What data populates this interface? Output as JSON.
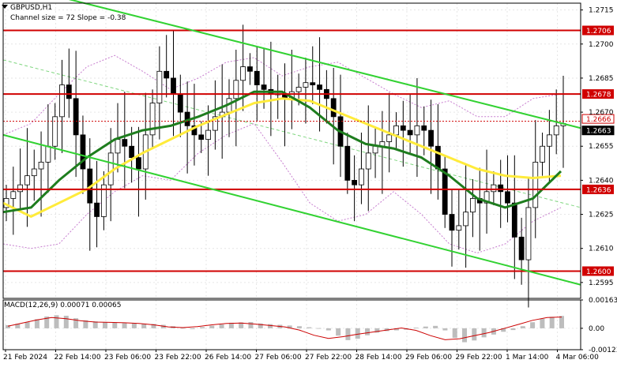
{
  "chart_data": [
    {
      "type": "line",
      "title": "GBPUSD,H1",
      "subtitle": "Channel size = 72 Slope = -0.38",
      "ylim": [
        1.2588,
        1.2718
      ],
      "grid": true,
      "y_ticks": [
        1.2595,
        1.261,
        1.2625,
        1.264,
        1.2655,
        1.267,
        1.2685,
        1.27,
        1.2715
      ],
      "x_ticks": [
        "21 Feb 2024",
        "22 Feb 14:00",
        "23 Feb 06:00",
        "23 Feb 22:00",
        "26 Feb 14:00",
        "27 Feb 06:00",
        "27 Feb 22:00",
        "28 Feb 14:00",
        "29 Feb 06:00",
        "29 Feb 22:00",
        "1 Mar 14:00",
        "4 Mar 06:00"
      ],
      "horizontal_levels": [
        {
          "label": "1.2706",
          "value": 1.2706
        },
        {
          "label": "1.2678",
          "value": 1.2678
        },
        {
          "label": "1.2636",
          "value": 1.2636
        },
        {
          "label": "1.2600",
          "value": 1.26
        }
      ],
      "price_tags": [
        {
          "label": "1.2666",
          "value": 1.2666,
          "color": "#cc0000"
        },
        {
          "label": "1.2663",
          "value": 1.2663,
          "color": "#000000"
        }
      ],
      "series": [
        {
          "role": "close",
          "values": [
            1.2632,
            1.2635,
            1.2638,
            1.2642,
            1.2645,
            1.2648,
            1.2655,
            1.2668,
            1.2682,
            1.2676,
            1.266,
            1.2645,
            1.263,
            1.2624,
            1.2638,
            1.2652,
            1.2658,
            1.2655,
            1.265,
            1.2645,
            1.266,
            1.2674,
            1.2688,
            1.2685,
            1.2678,
            1.267,
            1.2664,
            1.266,
            1.2658,
            1.2662,
            1.2668,
            1.267,
            1.2676,
            1.2684,
            1.269,
            1.2688,
            1.2682,
            1.268,
            1.2678,
            1.2678,
            1.2676,
            1.2679,
            1.2681,
            1.2683,
            1.2682,
            1.268,
            1.2676,
            1.2668,
            1.2655,
            1.264,
            1.2638,
            1.2645,
            1.2652,
            1.2655,
            1.2657,
            1.266,
            1.2664,
            1.2662,
            1.266,
            1.2664,
            1.2662,
            1.2655,
            1.2645,
            1.2625,
            1.2618,
            1.262,
            1.2626,
            1.2632,
            1.263,
            1.2635,
            1.2638,
            1.2635,
            1.263,
            1.2615,
            1.2605,
            1.2628,
            1.2648,
            1.2655,
            1.266,
            1.2664,
            1.2665
          ]
        },
        {
          "role": "channel-upper",
          "x0_value": 1.2727,
          "x1_value": 1.2663
        },
        {
          "role": "channel-lower",
          "x0_value": 1.266,
          "x1_value": 1.2594
        },
        {
          "role": "channel-mid",
          "x0_value": 1.2693,
          "x1_value": 1.2628
        },
        {
          "role": "bollinger-upper",
          "values": [
            1.266,
            1.2665,
            1.2678,
            1.269,
            1.2695,
            1.2688,
            1.268,
            1.2685,
            1.2692,
            1.2694,
            1.2686,
            1.269,
            1.2692,
            1.2685,
            1.2678,
            1.2672,
            1.2675,
            1.2668,
            1.2668,
            1.2676,
            1.2678
          ]
        },
        {
          "role": "bollinger-lower",
          "values": [
            1.2612,
            1.261,
            1.2612,
            1.2625,
            1.2635,
            1.2642,
            1.264,
            1.2652,
            1.266,
            1.2665,
            1.2648,
            1.263,
            1.2622,
            1.2625,
            1.2635,
            1.2625,
            1.2612,
            1.2608,
            1.2612,
            1.2622,
            1.2628
          ]
        },
        {
          "role": "ma-slow",
          "color": "#ffeb3b",
          "values": [
            1.263,
            1.2624,
            1.263,
            1.2636,
            1.2645,
            1.2652,
            1.2658,
            1.2664,
            1.2669,
            1.2674,
            1.2676,
            1.2675,
            1.267,
            1.2665,
            1.266,
            1.2655,
            1.265,
            1.2645,
            1.2642,
            1.2641,
            1.2642
          ]
        },
        {
          "role": "ma-fast",
          "color": "#1e7d1e",
          "values": [
            1.2626,
            1.2628,
            1.264,
            1.265,
            1.2658,
            1.2662,
            1.2664,
            1.2668,
            1.2673,
            1.2679,
            1.2679,
            1.2672,
            1.2662,
            1.2656,
            1.2654,
            1.265,
            1.2642,
            1.2632,
            1.2628,
            1.2632,
            1.2644
          ]
        }
      ]
    },
    {
      "type": "bar",
      "title": "MACD(12,26,9) 0.00071 0.00065",
      "ylim": [
        -0.00123,
        0.00163
      ],
      "y_ticks": [
        {
          "label": "0.00163",
          "value": 0.00163
        },
        {
          "label": "0.00",
          "value": 0.0
        },
        {
          "label": "-0.00123",
          "value": -0.00123
        }
      ],
      "series": [
        {
          "name": "histogram",
          "color": "#bdbdbd",
          "values": [
            0.00018,
            0.00026,
            0.00035,
            0.00052,
            0.00068,
            0.00075,
            0.00072,
            0.00058,
            0.00046,
            0.0004,
            0.00036,
            0.00032,
            0.0003,
            0.00029,
            0.00027,
            0.00025,
            0.0002,
            0.00012,
            2e-05,
            -5e-05,
            7e-05,
            0.00015,
            0.00022,
            0.00032,
            0.00034,
            0.00036,
            0.00028,
            0.00024,
            0.0002,
            0.00016,
            0.00012,
            6e-05,
            1e-05,
            -0.00012,
            -0.00042,
            -0.00068,
            -0.0006,
            -0.0004,
            -0.00025,
            -0.00016,
            -0.00012,
            -8e-05,
            4e-05,
            0.0001,
            0.00014,
            -0.00012,
            -0.00055,
            -0.0008,
            -0.0007,
            -0.00052,
            -0.00036,
            -0.0002,
            -0.0001,
            0.00012,
            0.00035,
            0.00055,
            0.00066,
            0.00071
          ]
        },
        {
          "name": "signal",
          "color": "#cc0000",
          "values": [
            0.00012,
            0.0003,
            0.00048,
            0.00062,
            0.00055,
            0.00043,
            0.00036,
            0.00034,
            0.00032,
            0.00028,
            0.0002,
            8e-05,
            4e-05,
            0.0001,
            0.0002,
            0.00028,
            0.0003,
            0.00024,
            0.00016,
            8e-05,
            -0.0001,
            -0.0004,
            -0.00058,
            -0.00048,
            -0.00034,
            -0.00022,
            -0.0001,
            2e-05,
            -0.00012,
            -0.00042,
            -0.00066,
            -0.0006,
            -0.00042,
            -0.00025,
            -2e-05,
            0.00022,
            0.00046,
            0.00062,
            0.00065
          ]
        }
      ]
    }
  ]
}
